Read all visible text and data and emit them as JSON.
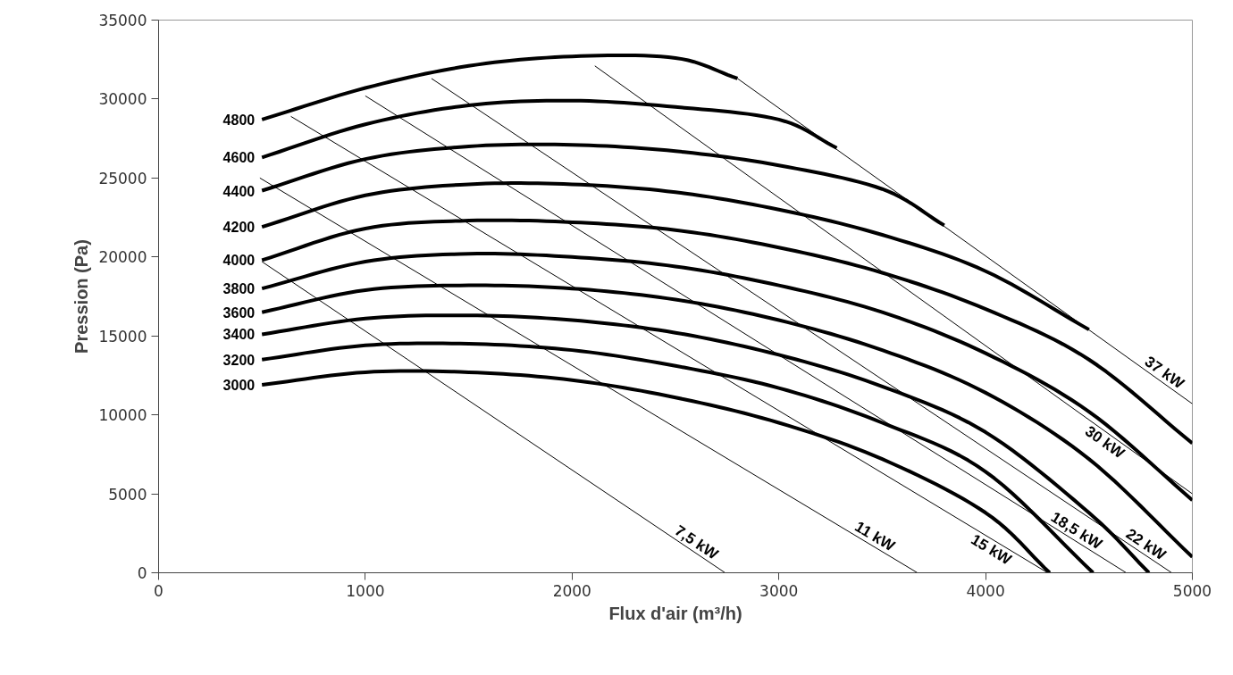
{
  "chart_data": {
    "type": "line",
    "xlabel": "Flux d'air (m³/h)",
    "ylabel": "Pression (Pa)",
    "xlim": [
      0,
      5000
    ],
    "ylim": [
      0,
      35000
    ],
    "xticks": [
      0,
      1000,
      2000,
      3000,
      4000,
      5000
    ],
    "yticks": [
      0,
      5000,
      10000,
      15000,
      20000,
      25000,
      30000,
      35000
    ],
    "series": [
      {
        "name": "3000",
        "color": "#000000",
        "x": [
          500,
          1000,
          1500,
          2000,
          2500,
          3000,
          3500,
          4000,
          4310
        ],
        "values": [
          11900,
          12700,
          12700,
          12200,
          11100,
          9500,
          7200,
          3800,
          0
        ]
      },
      {
        "name": "3200",
        "color": "#000000",
        "x": [
          500,
          1000,
          1500,
          2000,
          2500,
          3000,
          3500,
          4000,
          4520
        ],
        "values": [
          13500,
          14400,
          14500,
          14100,
          13100,
          11700,
          9500,
          6400,
          0
        ]
      },
      {
        "name": "3400",
        "color": "#000000",
        "x": [
          500,
          1000,
          1500,
          2000,
          2500,
          3000,
          3500,
          4000,
          4500,
          4790
        ],
        "values": [
          15100,
          16100,
          16300,
          16000,
          15200,
          13800,
          11800,
          8900,
          3800,
          0
        ]
      },
      {
        "name": "3600",
        "color": "#000000",
        "x": [
          500,
          1000,
          1500,
          2000,
          2500,
          3000,
          3500,
          4000,
          4500,
          5000
        ],
        "values": [
          16500,
          17900,
          18200,
          18000,
          17300,
          16000,
          14100,
          11400,
          7200,
          1000
        ]
      },
      {
        "name": "3800",
        "color": "#000000",
        "x": [
          500,
          1000,
          1500,
          2000,
          2500,
          3000,
          3500,
          4000,
          4500,
          5000
        ],
        "values": [
          18000,
          19700,
          20200,
          20000,
          19400,
          18200,
          16500,
          13900,
          10200,
          4600
        ]
      },
      {
        "name": "4000",
        "color": "#000000",
        "x": [
          500,
          1000,
          1500,
          2000,
          2500,
          3000,
          3500,
          4000,
          4500,
          5000
        ],
        "values": [
          19800,
          21800,
          22300,
          22200,
          21700,
          20600,
          19000,
          16700,
          13500,
          8200
        ]
      },
      {
        "name": "4200",
        "color": "#000000",
        "x": [
          500,
          1000,
          1500,
          2000,
          2500,
          3000,
          3500,
          4000,
          4500
        ],
        "values": [
          21900,
          23900,
          24600,
          24600,
          24100,
          23000,
          21400,
          19100,
          15400
        ]
      },
      {
        "name": "4400",
        "color": "#000000",
        "x": [
          500,
          1000,
          1500,
          2000,
          2500,
          3000,
          3500,
          3800
        ],
        "values": [
          24200,
          26200,
          27000,
          27100,
          26700,
          25800,
          24300,
          22000
        ]
      },
      {
        "name": "4600",
        "color": "#000000",
        "x": [
          500,
          1000,
          1500,
          2000,
          2500,
          3000,
          3280
        ],
        "values": [
          26300,
          28400,
          29600,
          29900,
          29500,
          28700,
          26900
        ]
      },
      {
        "name": "4800",
        "color": "#000000",
        "x": [
          500,
          1000,
          1500,
          2000,
          2500,
          2800
        ],
        "values": [
          28700,
          30700,
          32100,
          32700,
          32600,
          31300
        ]
      },
      {
        "name": "7,5 kW",
        "color": "#000000",
        "x": [
          500,
          2740
        ],
        "values": [
          19700,
          0
        ]
      },
      {
        "name": "11 kW",
        "color": "#000000",
        "x": [
          490,
          3670
        ],
        "values": [
          25000,
          0
        ]
      },
      {
        "name": "15 kW",
        "color": "#000000",
        "x": [
          640,
          4300
        ],
        "values": [
          28900,
          0
        ]
      },
      {
        "name": "18,5 kW",
        "color": "#000000",
        "x": [
          1000,
          4680
        ],
        "values": [
          30200,
          0
        ]
      },
      {
        "name": "22 kW",
        "color": "#000000",
        "x": [
          1320,
          4900
        ],
        "values": [
          31300,
          0
        ]
      },
      {
        "name": "30 kW",
        "color": "#000000",
        "x": [
          2110,
          5000
        ],
        "values": [
          32100,
          5000
        ]
      },
      {
        "name": "37 kW",
        "color": "#000000",
        "x": [
          2800,
          5000
        ],
        "values": [
          31300,
          10700
        ]
      }
    ]
  }
}
